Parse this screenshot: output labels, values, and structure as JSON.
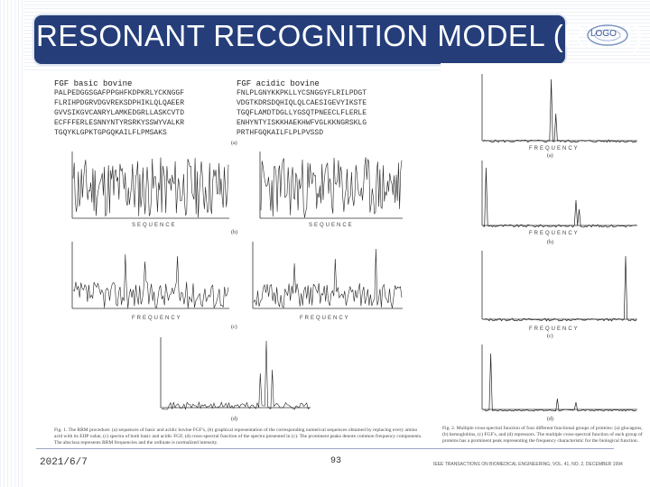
{
  "slide": {
    "title": "RESONANT RECOGNITION MODEL (RRM)",
    "logo_text": "LOGO",
    "date": "2021/6/7",
    "page_number": "93"
  },
  "figure1": {
    "seq_title_left": "FGF basic bovine",
    "seq_title_right": "FGF acidic bovine",
    "seq_left": "PALPEDGGSGAFPPGHFKDPKRLYCKNGGF\nFLRIHPDGRVDGVREKSDPHIKLQLQAEER\nGVVSIKGVCANRYLAMKEDGRLLASKCVTD\nECFFFERLESNNYNTYRSRKYSSWYVALKR\nTGQYKLGPKTGPGQKAILFLPMSAKS",
    "seq_right": "FNLPLGNYKKPKLLYCSNGGYFLRILPDGT\nVDGTKDRSDQHIQLQLCAESIGEVYIKSTE\nTGQFLAMDTDGLLYGSQTPNEECLFLERLE\nENHYNTYISKKHAEKHWFVGLKKNGRSKLG\nPRTHFGQKAILFLPLPVSSD",
    "label_a": "(a)",
    "label_b": "(b)",
    "label_c": "(c)",
    "label_d": "(d)",
    "axis_sequence": "SEQUENCE",
    "axis_frequency": "FREQUENCY",
    "caption": "Fig. 1. The RRM procedure: (a) sequences of basic and acidic bovine FGF's, (b) graphical representation of the corresponding numerical sequences obtained by replacing every amino acid with its EIIP value, (c) spectra of both basic and acidic FGF, (d) cross-spectral function of the spectra presented in (c). The prominent peaks denote common frequency components. The abscissa represents RRM frequencies and the ordinate is normalized intensity."
  },
  "figure2": {
    "label_a": "(a)",
    "label_b": "(b)",
    "label_c": "(c)",
    "label_d": "(d)",
    "axis_frequency": "FREQUENCY",
    "caption": "Fig. 2. Multiple cross-spectral function of four different functional groups of proteins: (a) glucagons, (b) hemoglobins, (c) FGF's, and (d) repressors. The multiple cross-spectral function of each group of proteins has a prominent peak representing the frequency characteristic for the biological function."
  },
  "journal_line": "IEEE TRANSACTIONS ON BIOMEDICAL ENGINEERING, VOL. 41, NO. 2, DECEMBER 1994"
}
